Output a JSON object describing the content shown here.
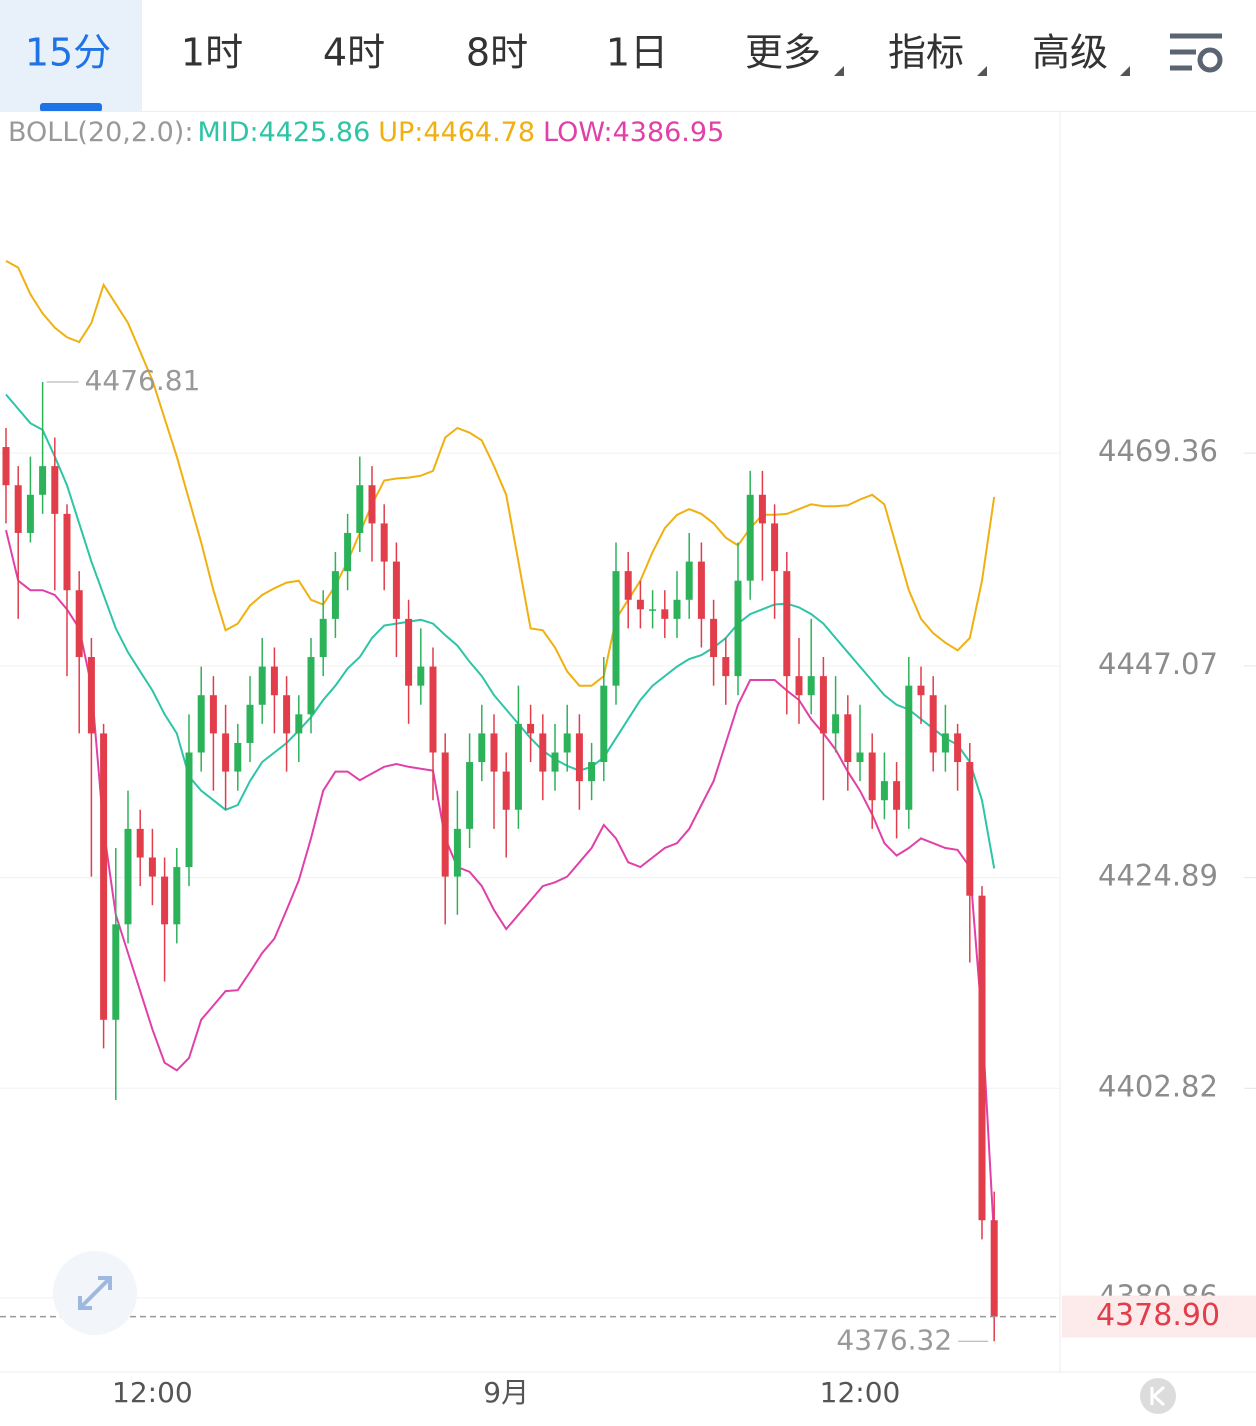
{
  "toolbar": {
    "tabs": [
      "15分",
      "1时",
      "4时",
      "8时",
      "1日",
      "更多",
      "指标",
      "高级"
    ],
    "active": 0
  },
  "chart_data": {
    "type": "candlestick",
    "indicator": "BOLL(20,2.0):",
    "up_color": "#2cb35a",
    "down_color": "#e23d4b",
    "categories": [
      null,
      null,
      null,
      null,
      null,
      null,
      null,
      null,
      null,
      null,
      null,
      null,
      "12:00",
      null,
      null,
      null,
      null,
      null,
      null,
      null,
      null,
      null,
      null,
      null,
      null,
      null,
      null,
      null,
      null,
      null,
      null,
      null,
      null,
      null,
      null,
      null,
      null,
      null,
      null,
      null,
      null,
      "9月",
      null,
      null,
      null,
      null,
      null,
      null,
      null,
      null,
      null,
      null,
      null,
      null,
      null,
      null,
      null,
      null,
      null,
      null,
      null,
      null,
      null,
      null,
      null,
      null,
      null,
      null,
      null,
      null,
      "12:00",
      null,
      null,
      null,
      null,
      null,
      null,
      null,
      null,
      null,
      null,
      null
    ],
    "open": [
      4470,
      4466,
      4461,
      4465,
      4468,
      4463,
      4455,
      4448,
      4440,
      4410,
      4420,
      4430,
      4427,
      4425,
      4420,
      4426,
      4438,
      4444,
      4440,
      4436,
      4439,
      4443,
      4447,
      4444,
      4440,
      4442,
      4448,
      4452,
      4457,
      4461,
      4466,
      4462,
      4458,
      4452,
      4445,
      4447,
      4438,
      4425,
      4430,
      4437,
      4440,
      4436,
      4432,
      4441,
      4440,
      4436,
      4438,
      4440,
      4435,
      4437,
      4445,
      4457,
      4454,
      4453,
      4453,
      4452,
      4454,
      4458,
      4452,
      4448,
      4446,
      4456,
      4465,
      4462,
      4457,
      4446,
      4444,
      4446,
      4440,
      4442,
      4437,
      4438,
      4433,
      4435,
      4432,
      4445,
      4444,
      4438,
      4440,
      4437,
      4423,
      4389
    ],
    "high": [
      4472,
      4468,
      4469,
      4476.81,
      4471,
      4464,
      4457,
      4450,
      4441,
      4428,
      4434,
      4432,
      4430,
      4427,
      4428,
      4442,
      4447,
      4446,
      4443,
      4441,
      4446,
      4450,
      4449,
      4446,
      4444,
      4450,
      4455,
      4459,
      4463,
      4469,
      4468,
      4464,
      4460,
      4454,
      4451,
      4449,
      4440,
      4434,
      4440,
      4443,
      4442,
      4438,
      4445,
      4443,
      4442,
      4441,
      4443,
      4442,
      4439,
      4448,
      4460,
      4459,
      4456,
      4455,
      4455,
      4457,
      4461,
      4460,
      4454,
      4450,
      4460,
      4467.5,
      4467.5,
      4464,
      4459,
      4450,
      4452,
      4448,
      4446,
      4444,
      4443,
      4440,
      4438,
      4437,
      4448,
      4447,
      4446,
      4443,
      4441,
      4439,
      4424,
      4392
    ],
    "low": [
      4462,
      4452,
      4460,
      4463,
      4455,
      4446,
      4440,
      4425,
      4407,
      4401.6,
      4418,
      4424,
      4422,
      4414,
      4418,
      4424,
      4436,
      4434,
      4432,
      4434,
      4437,
      4441,
      4440,
      4436,
      4437,
      4440,
      4446,
      4450,
      4455,
      4459,
      4458,
      4455,
      4448,
      4441,
      4443,
      4433,
      4420,
      4421,
      4428,
      4435,
      4430,
      4427,
      4430,
      4437,
      4433,
      4434,
      4436,
      4432,
      4433,
      4435,
      4443,
      4451,
      4451,
      4451,
      4450,
      4450,
      4452,
      4449,
      4445,
      4443,
      4444,
      4454,
      4456,
      4452,
      4442,
      4441,
      4442,
      4433,
      4438,
      4434,
      4435,
      4430,
      4431,
      4429,
      4430,
      4441,
      4436,
      4436,
      4434,
      4416,
      4387,
      4376.32
    ],
    "close": [
      4466,
      4461,
      4465,
      4468,
      4463,
      4455,
      4448,
      4440,
      4410,
      4420,
      4430,
      4427,
      4425,
      4420,
      4426,
      4438,
      4444,
      4440,
      4436,
      4439,
      4443,
      4447,
      4444,
      4440,
      4442,
      4448,
      4452,
      4457,
      4461,
      4466,
      4462,
      4458,
      4452,
      4445,
      4447,
      4438,
      4425,
      4430,
      4437,
      4440,
      4436,
      4432,
      4441,
      4440,
      4436,
      4438,
      4440,
      4435,
      4437,
      4445,
      4457,
      4454,
      4453,
      4453,
      4452,
      4454,
      4458,
      4452,
      4448,
      4446,
      4456,
      4465,
      4462,
      4457,
      4446,
      4444,
      4446,
      4440,
      4442,
      4437,
      4438,
      4433,
      4435,
      4432,
      4445,
      4444,
      4438,
      4440,
      4437,
      4423,
      4389,
      4378.9
    ],
    "series": [
      {
        "name": "MID:",
        "color": "#2ec4a6",
        "values": [
          4475.5,
          4474,
          4472.5,
          4471.8,
          4469,
          4466,
          4462,
          4458,
          4454.5,
          4451,
          4448.5,
          4446.5,
          4444.5,
          4442,
          4440,
          4435.5,
          4434,
          4433,
          4432,
          4432.5,
          4435,
          4437,
          4438,
          4439,
          4440.3,
          4441.7,
          4443.5,
          4445,
          4446.8,
          4448,
          4450,
          4451.3,
          4451.5,
          4451.7,
          4451.9,
          4451.5,
          4450.3,
          4449.2,
          4447.5,
          4446,
          4444,
          4442.5,
          4441,
          4439.5,
          4438.2,
          4437.3,
          4436.6,
          4436.1,
          4436.5,
          4437.5,
          4439.5,
          4441.5,
          4443.5,
          4445,
          4446,
          4447,
          4447.8,
          4448.2,
          4449,
          4450,
          4451.5,
          4452.5,
          4453,
          4453.5,
          4453.6,
          4453.2,
          4452.5,
          4451.5,
          4450,
          4448.5,
          4447,
          4445.5,
          4444,
          4443,
          4442.5,
          4441.5,
          4440.5,
          4439.5,
          4438.8,
          4437,
          4433,
          4425.86
        ]
      },
      {
        "name": "UP:",
        "color": "#f0b010",
        "values": [
          4489.5,
          4488.8,
          4486,
          4484,
          4482.5,
          4481.5,
          4481,
          4483,
          4487,
          4485,
          4483,
          4480,
          4477,
          4473,
          4469,
          4464.5,
          4460,
          4455,
          4450.8,
          4451.5,
          4453.4,
          4454.5,
          4455.2,
          4455.8,
          4456,
          4454,
          4453.5,
          4455.5,
          4458,
          4461,
          4464,
          4466.5,
          4466.7,
          4466.8,
          4467,
          4467.5,
          4471,
          4472,
          4471.5,
          4470.7,
          4468,
          4465,
          4458,
          4451,
          4450.8,
          4449,
          4446.5,
          4445,
          4445,
          4446,
          4452,
          4454,
          4456,
          4459,
          4461.5,
          4462.9,
          4463.5,
          4463,
          4462,
          4460.5,
          4459.7,
          4461.5,
          4462.9,
          4462.9,
          4463,
          4463.5,
          4464,
          4463.8,
          4463.8,
          4463.9,
          4464.5,
          4465,
          4464,
          4459.5,
          4455,
          4452,
          4450.5,
          4449.5,
          4448.7,
          4450,
          4456,
          4464.78
        ]
      },
      {
        "name": "LOW:",
        "color": "#e040a8",
        "values": [
          4461.3,
          4456,
          4455,
          4455,
          4454.5,
          4453,
          4451,
          4445,
          4430,
          4421,
          4417,
          4413,
          4409,
          4405.5,
          4404.7,
          4406,
          4410,
          4411.5,
          4413,
          4413.1,
          4415,
          4417,
          4418.5,
          4421.5,
          4424.6,
          4429,
          4434,
          4436,
          4436,
          4435.1,
          4435.8,
          4436.5,
          4436.8,
          4436.5,
          4436.3,
          4436.1,
          4429,
          4426,
          4425.5,
          4424,
          4421.5,
          4419.5,
          4421,
          4422.5,
          4424,
          4424.4,
          4425,
          4426.5,
          4428,
          4430.4,
          4429,
          4426.5,
          4426,
          4427,
          4428,
          4428.5,
          4430,
          4432.5,
          4435,
          4439,
          4443,
          4445.6,
          4445.6,
          4445.6,
          4444.5,
          4443.5,
          4441.5,
          4440,
          4438.3,
          4436,
          4434,
          4431.5,
          4428.5,
          4427.2,
          4428,
          4429,
          4428.5,
          4428,
          4427.8,
          4426,
          4410,
          4386.95
        ]
      }
    ],
    "ylim": [
      4373.1,
      4505.1
    ],
    "yticks": [
      4469.36,
      4447.07,
      4424.89,
      4402.82,
      4380.86
    ],
    "grid": true,
    "last_price": {
      "value": 4378.9,
      "label": "4378.90"
    }
  }
}
